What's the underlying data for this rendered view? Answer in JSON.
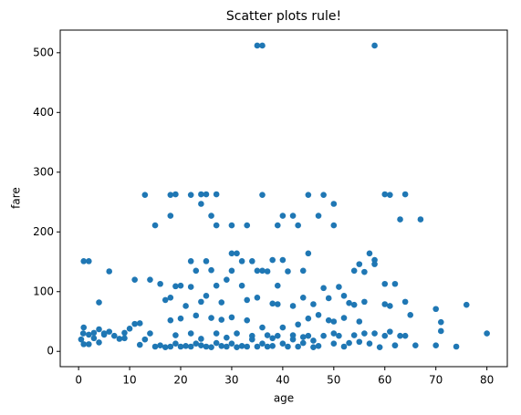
{
  "chart_data": {
    "type": "scatter",
    "title": "Scatter plots rule!",
    "x_label": "age",
    "y_label": "fare",
    "color": "#1f77b4",
    "xlim": [
      -3.6,
      84
    ],
    "ylim": [
      -25.6,
      537.9
    ],
    "xticks": [
      0,
      10,
      20,
      30,
      40,
      50,
      60,
      70,
      80
    ],
    "yticks": [
      0,
      100,
      200,
      300,
      400,
      500
    ],
    "x": [
      35,
      36,
      58,
      13,
      18,
      19,
      22,
      24,
      25,
      27,
      36,
      45,
      48,
      60,
      61,
      64,
      50,
      24,
      15,
      18,
      27,
      30,
      33,
      40,
      39,
      42,
      43,
      47,
      50,
      63,
      67,
      26,
      1,
      2,
      22,
      23,
      25,
      30,
      31,
      32,
      36,
      38,
      40,
      41,
      45,
      57,
      58,
      58,
      6,
      11,
      14,
      34,
      26,
      37,
      35,
      54,
      55,
      56,
      44,
      30,
      20,
      19,
      16,
      27,
      39,
      32,
      48,
      51,
      60,
      62,
      29,
      4,
      12,
      17,
      18,
      21,
      22,
      24,
      25,
      28,
      33,
      35,
      38,
      39,
      42,
      44,
      46,
      49,
      52,
      53,
      54,
      56,
      60,
      61,
      64,
      65,
      70,
      71,
      76,
      80,
      74,
      70,
      71,
      66,
      62,
      64,
      63,
      0.5,
      0.9,
      1,
      2,
      3,
      4,
      5,
      6,
      7,
      8,
      9,
      10,
      11,
      13,
      14,
      15,
      16,
      17,
      18,
      19,
      20,
      21,
      22,
      23,
      24,
      25,
      26,
      27,
      28,
      29,
      30,
      31,
      32,
      33,
      34,
      35,
      36,
      37,
      38,
      39,
      40,
      41,
      42,
      43,
      44,
      45,
      46,
      47,
      48,
      49,
      50,
      51,
      52,
      53,
      54,
      55,
      56,
      57,
      58,
      59,
      60,
      61,
      62,
      2,
      1,
      4,
      9,
      12,
      18,
      20,
      23,
      26,
      28,
      30,
      33,
      36,
      40,
      43,
      45,
      47,
      50,
      52,
      55,
      5,
      3,
      22,
      27,
      31,
      37,
      44,
      19,
      24,
      29,
      34,
      38,
      42,
      46,
      50
    ],
    "values": [
      512,
      512,
      512,
      262,
      262,
      263,
      262,
      263,
      263,
      263,
      262,
      262,
      262,
      263,
      262,
      263,
      247,
      247,
      211,
      227,
      211,
      211,
      211,
      227,
      211,
      227,
      211,
      227,
      211,
      221,
      221,
      227,
      151,
      151,
      151,
      135,
      151,
      164,
      164,
      151,
      135,
      153,
      153,
      134,
      164,
      164,
      146,
      153,
      134,
      120,
      120,
      151,
      136,
      134,
      135,
      135,
      146,
      133,
      135,
      135,
      110,
      109,
      113,
      110,
      110,
      110,
      106,
      108,
      113,
      113,
      120,
      82,
      47,
      86,
      90,
      76,
      108,
      83,
      93,
      82,
      86,
      90,
      80,
      79,
      76,
      90,
      79,
      89,
      93,
      81,
      78,
      83,
      79,
      76,
      83,
      61,
      71,
      49,
      78,
      30,
      8,
      10,
      34,
      10,
      10,
      26,
      26,
      20,
      30,
      40,
      28,
      22,
      15,
      30,
      33,
      26,
      21,
      31,
      38,
      46,
      20,
      30,
      8,
      10,
      7,
      8,
      13,
      8,
      9,
      8,
      13,
      10,
      8,
      7,
      14,
      9,
      8,
      13,
      7,
      9,
      8,
      26,
      8,
      13,
      8,
      9,
      26,
      13,
      8,
      27,
      8,
      14,
      26,
      7,
      9,
      26,
      52,
      13,
      26,
      8,
      14,
      27,
      16,
      30,
      13,
      30,
      7,
      26,
      33,
      10,
      12,
      12,
      37,
      22,
      11,
      52,
      55,
      60,
      56,
      53,
      57,
      52,
      40,
      40,
      45,
      55,
      61,
      50,
      56,
      50,
      28,
      31,
      30,
      30,
      30,
      27,
      24,
      27,
      21,
      23,
      20,
      22,
      20,
      18,
      30
    ]
  }
}
